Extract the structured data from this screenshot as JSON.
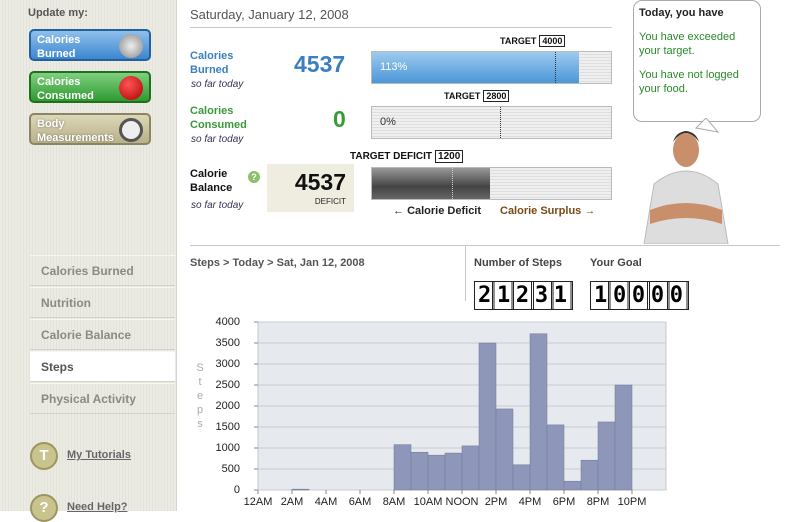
{
  "sidebar": {
    "heading": "Update my:",
    "buttons": [
      "Calories Burned",
      "Calories Consumed",
      "Body Measurements"
    ],
    "nav": [
      "Calories Burned",
      "Nutrition",
      "Calorie Balance",
      "Steps",
      "Physical Activity"
    ],
    "links": [
      "My Tutorials",
      "Need Help?"
    ]
  },
  "summary": {
    "date": "Saturday, January 12, 2008",
    "rows": [
      {
        "label": "Calories Burned",
        "sub": "so far today",
        "value": 4537,
        "target_label": "TARGET",
        "target": 4000,
        "percent": 113,
        "percent_label": "113%"
      },
      {
        "label": "Calories Consumed",
        "sub": "so far today",
        "value": 0,
        "target_label": "TARGET",
        "target": 2800,
        "percent": 0,
        "percent_label": "0%"
      }
    ],
    "balance": {
      "label": "Calorie Balance",
      "sub": "so far today",
      "value": 4537,
      "caption": "DEFICIT",
      "target_label": "TARGET DEFICIT",
      "target": 1200,
      "legend_deficit": "Calorie Deficit",
      "legend_surplus": "Calorie Surplus"
    }
  },
  "message": {
    "heading": "Today, you have",
    "lines": [
      "You have exceeded your target.",
      "You have not logged your food."
    ]
  },
  "steps": {
    "breadcrumb": "Steps > Today > Sat, Jan 12, 2008",
    "count_label": "Number of Steps",
    "count": 21231,
    "goal_label": "Your Goal",
    "goal": 10000
  },
  "chart_data": {
    "type": "bar",
    "y_label": "Steps",
    "color": "#8e97b9",
    "categories": [
      "12AM",
      null,
      "2AM",
      null,
      "4AM",
      null,
      "6AM",
      null,
      "8AM",
      null,
      "10AM",
      null,
      "NOON",
      null,
      "2PM",
      null,
      "4PM",
      null,
      "6PM",
      null,
      "8PM",
      null,
      "10PM",
      null
    ],
    "values": [
      0,
      0,
      20,
      0,
      0,
      0,
      0,
      0,
      1080,
      900,
      830,
      880,
      1050,
      3500,
      1930,
      600,
      3720,
      1550,
      210,
      710,
      1620,
      2500,
      0,
      0
    ],
    "ylim": [
      0,
      4000
    ],
    "yticks": [
      0,
      500,
      1000,
      1500,
      2000,
      2500,
      3000,
      3500,
      4000
    ],
    "grid": true
  }
}
